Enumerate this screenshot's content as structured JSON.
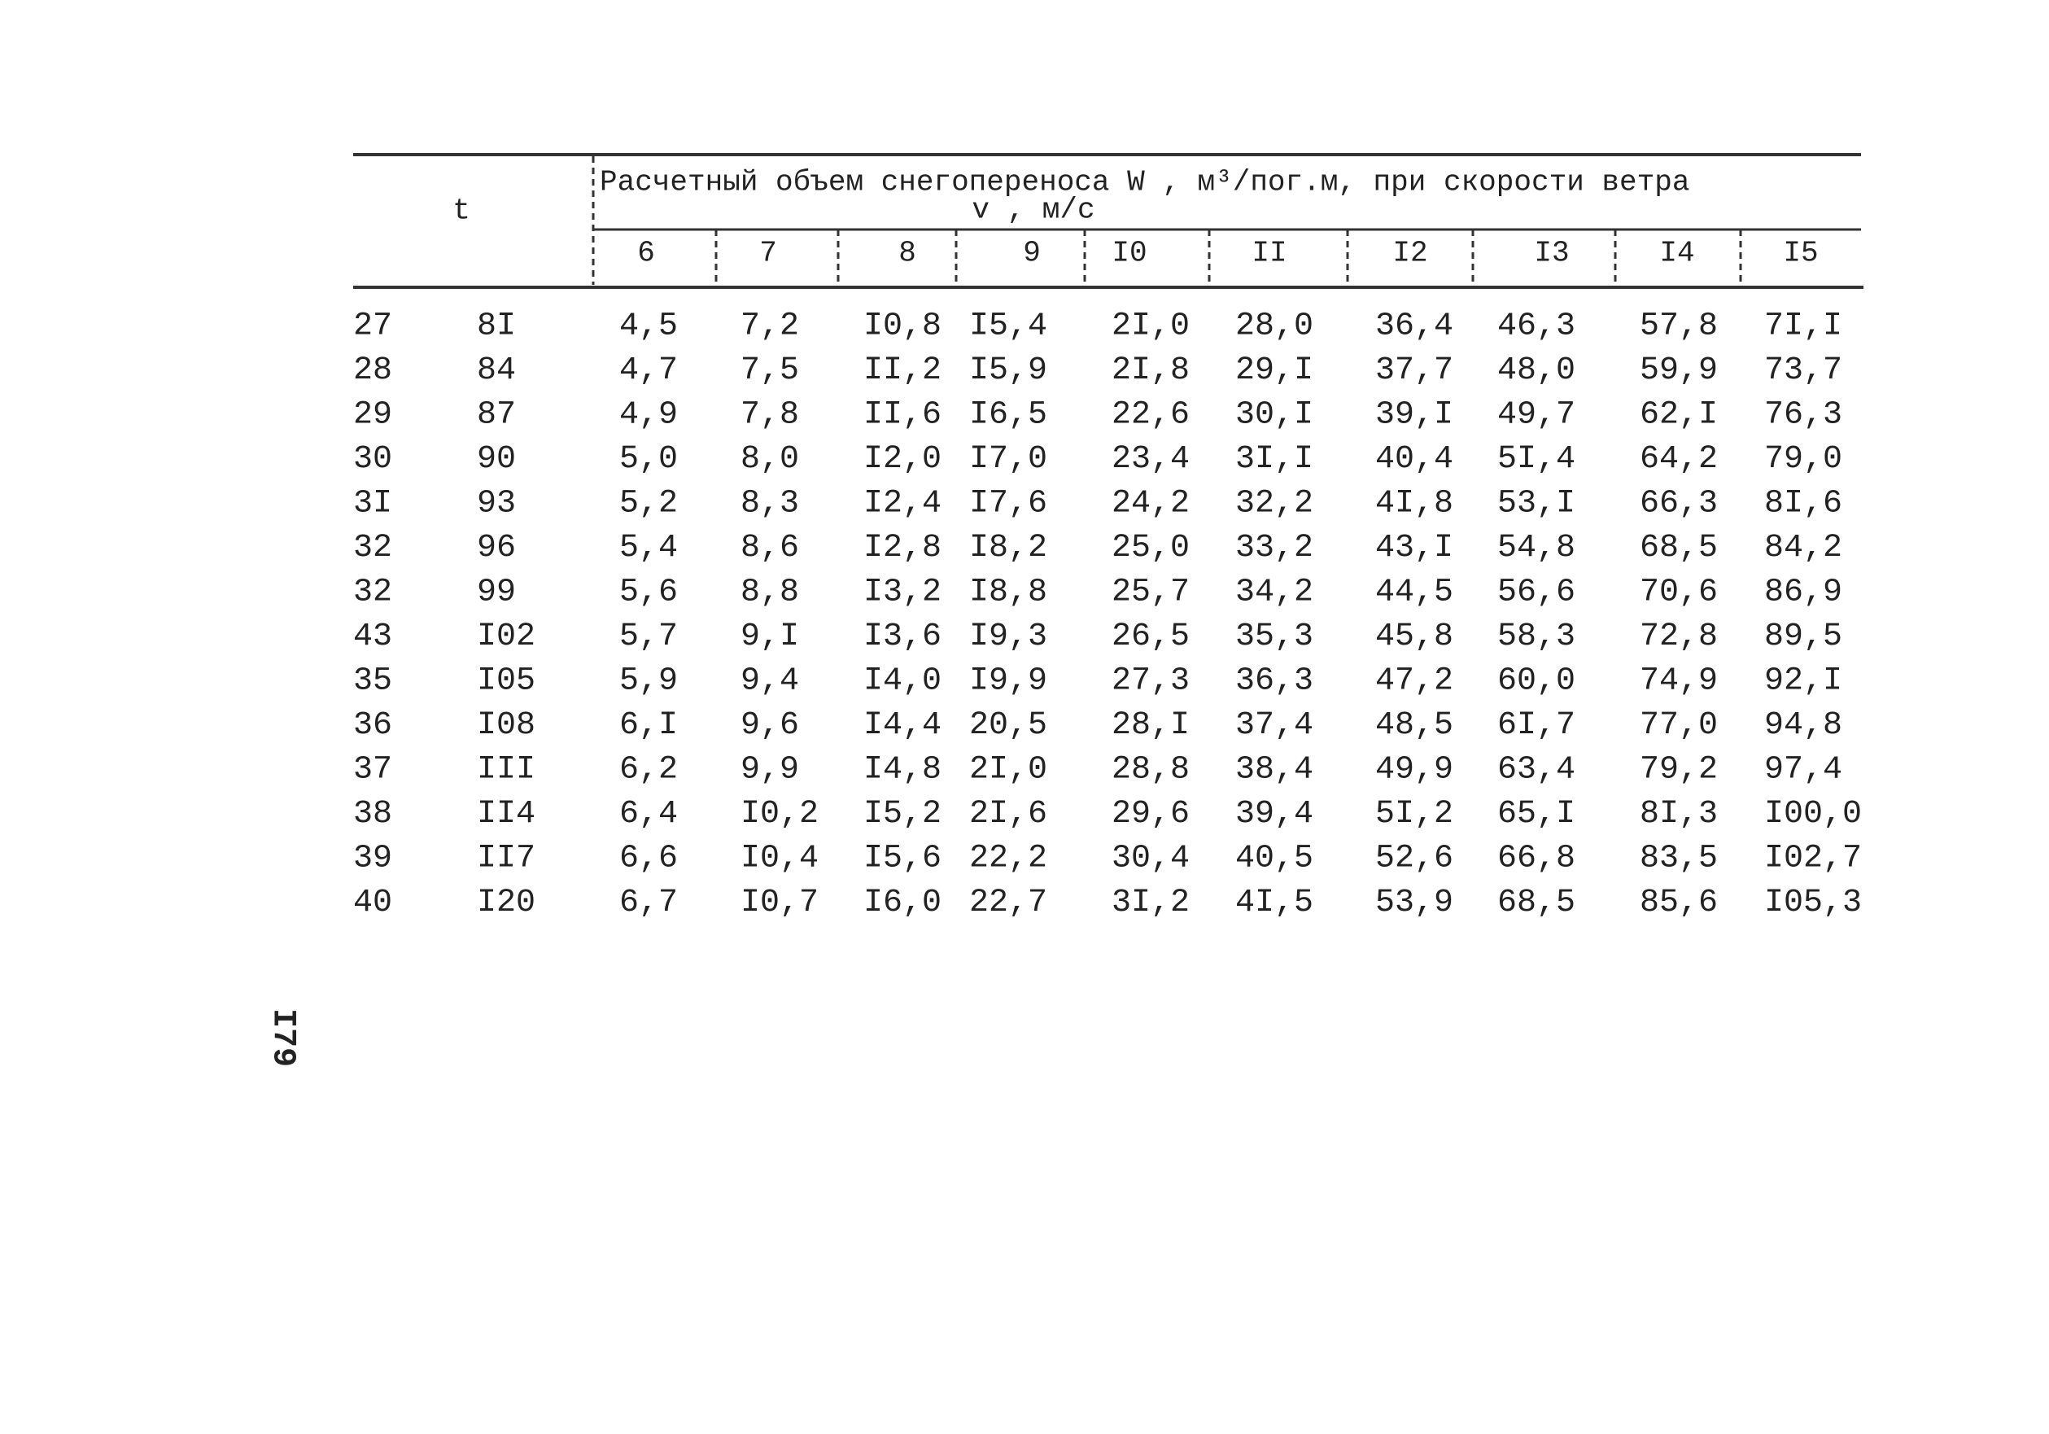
{
  "header": {
    "t": "t",
    "title": "Расчетный объем снегопереноса W , м³/пог.м, при скорости ветра",
    "title_unit": "v , м/с",
    "columns": [
      "6",
      "7",
      "8",
      "9",
      "I0",
      "II",
      "I2",
      "I3",
      "I4",
      "I5"
    ]
  },
  "table": {
    "rows": [
      [
        "27",
        "8I",
        "4,5",
        "7,2",
        "I0,8",
        "I5,4",
        "2I,0",
        "28,0",
        "36,4",
        "46,3",
        "57,8",
        "7I,I"
      ],
      [
        "28",
        "84",
        "4,7",
        "7,5",
        "II,2",
        "I5,9",
        "2I,8",
        "29,I",
        "37,7",
        "48,0",
        "59,9",
        "73,7"
      ],
      [
        "29",
        "87",
        "4,9",
        "7,8",
        "II,6",
        "I6,5",
        "22,6",
        "30,I",
        "39,I",
        "49,7",
        "62,I",
        "76,3"
      ],
      [
        "30",
        "90",
        "5,0",
        "8,0",
        "I2,0",
        "I7,0",
        "23,4",
        "3I,I",
        "40,4",
        "5I,4",
        "64,2",
        "79,0"
      ],
      [
        "3I",
        "93",
        "5,2",
        "8,3",
        "I2,4",
        "I7,6",
        "24,2",
        "32,2",
        "4I,8",
        "53,I",
        "66,3",
        "8I,6"
      ],
      [
        "32",
        "96",
        "5,4",
        "8,6",
        "I2,8",
        "I8,2",
        "25,0",
        "33,2",
        "43,I",
        "54,8",
        "68,5",
        "84,2"
      ],
      [
        "32",
        "99",
        "5,6",
        "8,8",
        "I3,2",
        "I8,8",
        "25,7",
        "34,2",
        "44,5",
        "56,6",
        "70,6",
        "86,9"
      ],
      [
        "43",
        "I02",
        "5,7",
        "9,I",
        "I3,6",
        "I9,3",
        "26,5",
        "35,3",
        "45,8",
        "58,3",
        "72,8",
        "89,5"
      ],
      [
        "35",
        "I05",
        "5,9",
        "9,4",
        "I4,0",
        "I9,9",
        "27,3",
        "36,3",
        "47,2",
        "60,0",
        "74,9",
        "92,I"
      ],
      [
        "36",
        "I08",
        "6,I",
        "9,6",
        "I4,4",
        "20,5",
        "28,I",
        "37,4",
        "48,5",
        "6I,7",
        "77,0",
        "94,8"
      ],
      [
        "37",
        "III",
        "6,2",
        "9,9",
        "I4,8",
        "2I,0",
        "28,8",
        "38,4",
        "49,9",
        "63,4",
        "79,2",
        "97,4"
      ],
      [
        "38",
        "II4",
        "6,4",
        "I0,2",
        "I5,2",
        "2I,6",
        "29,6",
        "39,4",
        "5I,2",
        "65,I",
        "8I,3",
        "I00,0"
      ],
      [
        "39",
        "II7",
        "6,6",
        "I0,4",
        "I5,6",
        "22,2",
        "30,4",
        "40,5",
        "52,6",
        "66,8",
        "83,5",
        "I02,7"
      ],
      [
        "40",
        "I20",
        "6,7",
        "I0,7",
        "I6,0",
        "22,7",
        "3I,2",
        "4I,5",
        "53,9",
        "68,5",
        "85,6",
        "I05,3"
      ]
    ]
  },
  "page_number": "I79"
}
